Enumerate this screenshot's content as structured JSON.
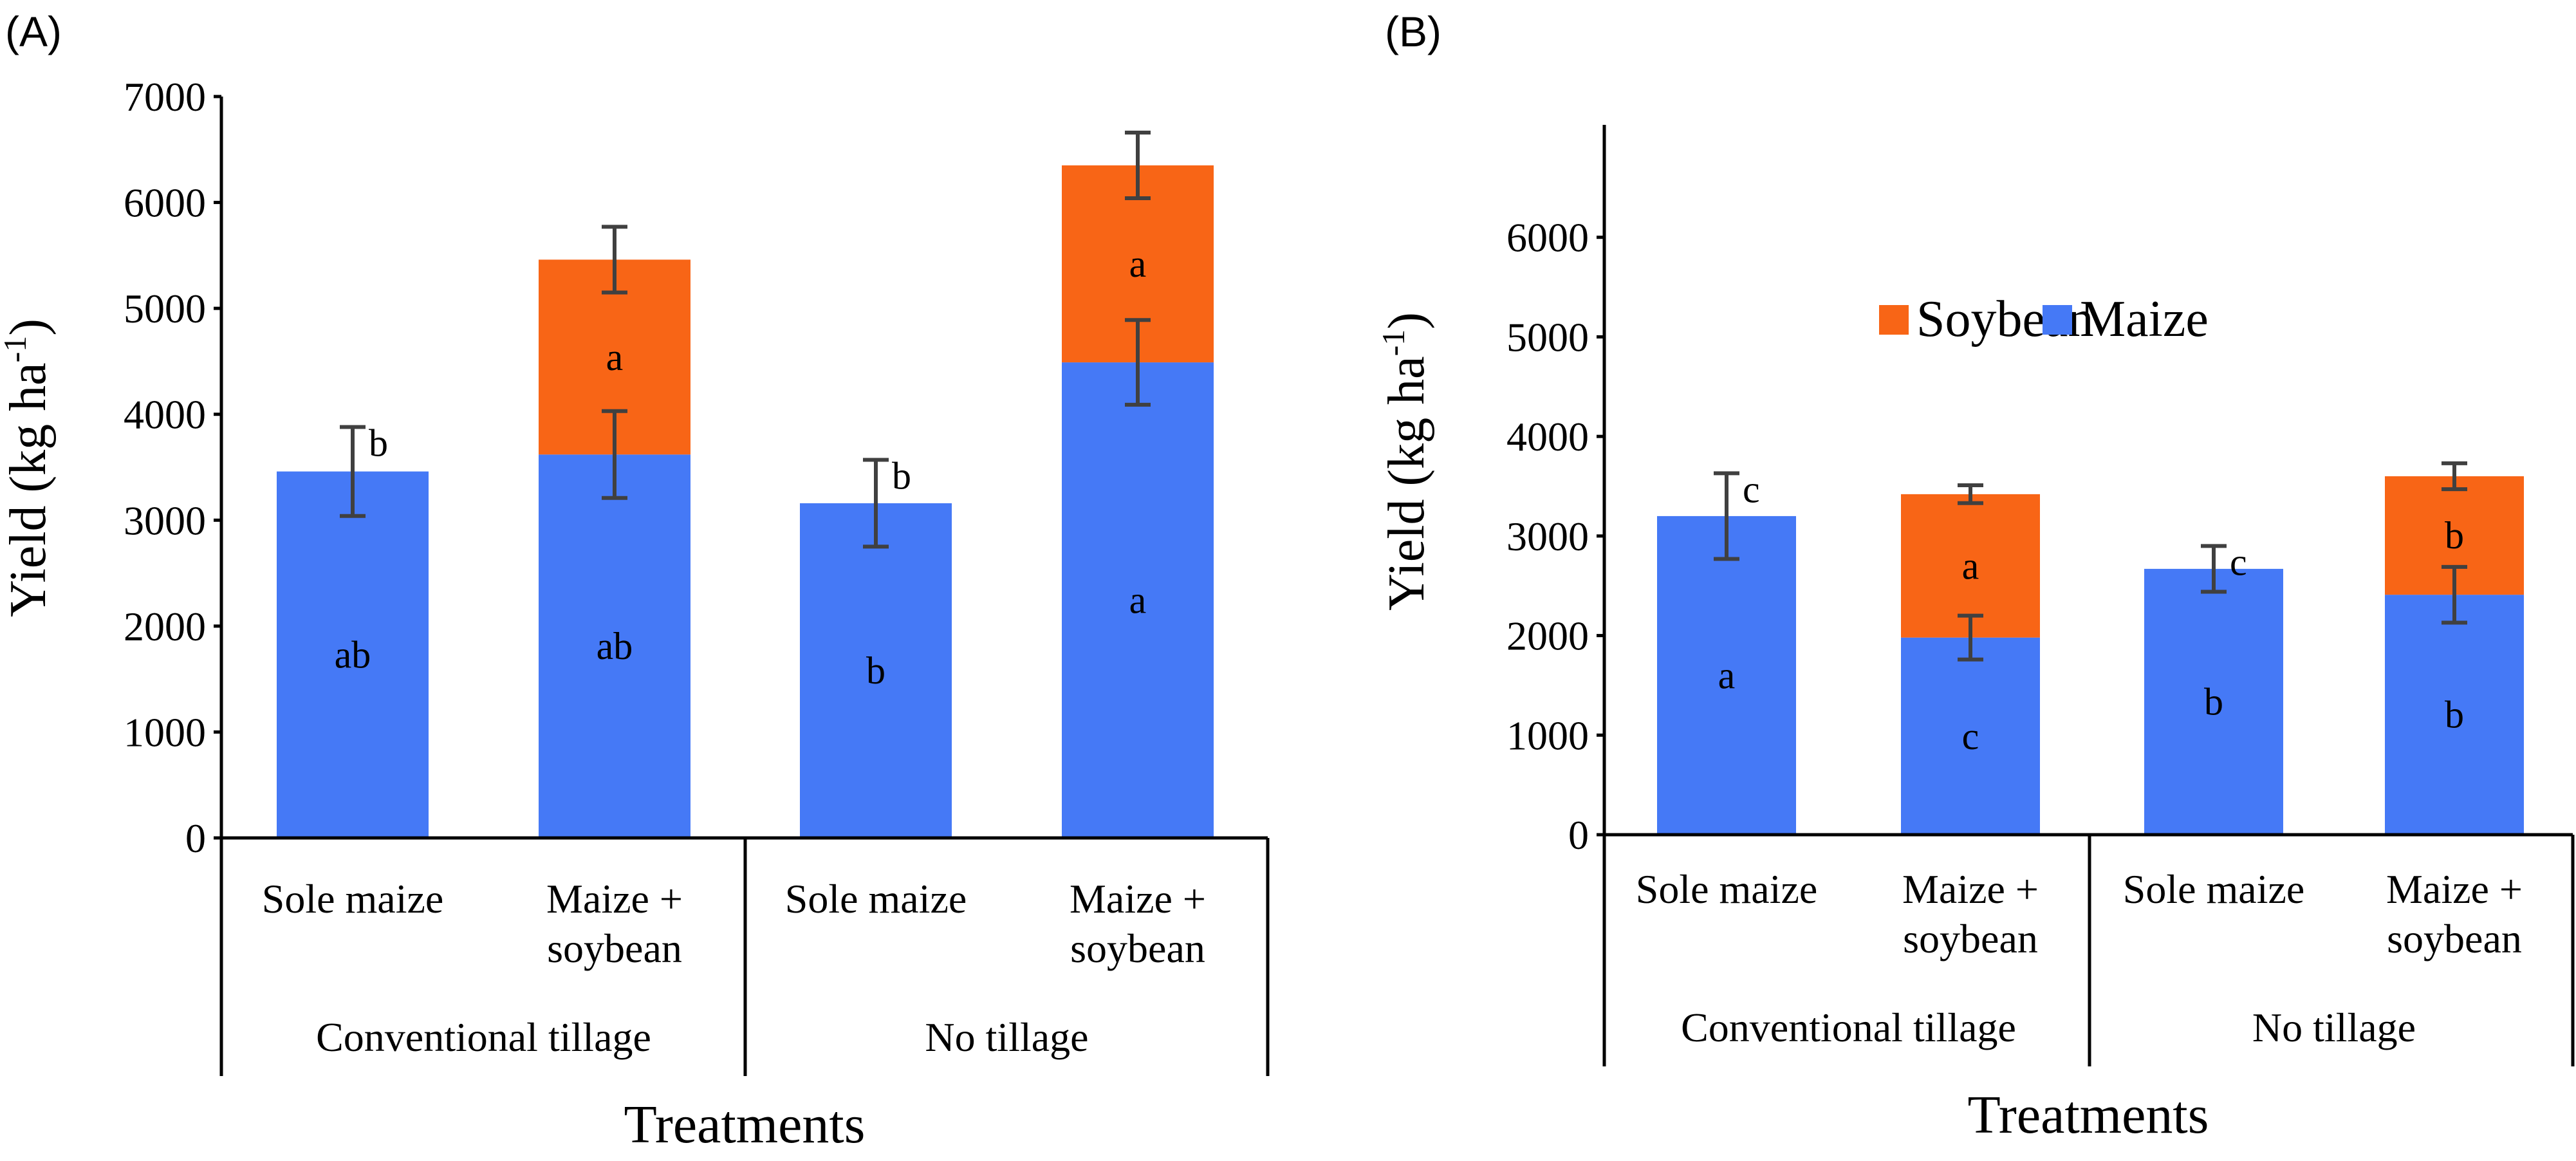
{
  "colors": {
    "maize": "#4579F6",
    "soybean": "#F86516",
    "axis": "#000000",
    "error_bar": "#404040",
    "text": "#000000"
  },
  "chart_data": [
    {
      "type": "bar",
      "stacked": true,
      "panel_label": "(A)",
      "xlabel": "Treatments",
      "ylabel_main": "Yield (kg ha",
      "ylabel_sup": "-1",
      "ylabel_end": ")",
      "ylim": [
        0,
        7000
      ],
      "yticks": [
        0,
        1000,
        2000,
        3000,
        4000,
        5000,
        6000,
        7000
      ],
      "legend": null,
      "categories": [
        "Sole maize",
        "Maize + soybean",
        "Sole maize",
        "Maize + soybean"
      ],
      "category_lines": [
        [
          "Sole maize"
        ],
        [
          "Maize +",
          "soybean"
        ],
        [
          "Sole maize"
        ],
        [
          "Maize +",
          "soybean"
        ]
      ],
      "groups": [
        {
          "label": "Conventional tillage",
          "span": [
            0,
            1
          ]
        },
        {
          "label": "No tillage",
          "span": [
            2,
            3
          ]
        }
      ],
      "series": [
        {
          "name": "Maize",
          "values": [
            3460,
            3620,
            3160,
            4490
          ],
          "errors": [
            420,
            410,
            410,
            400
          ],
          "letters": [
            "ab",
            "ab",
            "b",
            "a"
          ],
          "top_letters": [
            "b",
            null,
            "b",
            null
          ]
        },
        {
          "name": "Soybean",
          "values": [
            null,
            1840,
            null,
            1860
          ],
          "errors": [
            null,
            310,
            null,
            310
          ],
          "letters": [
            null,
            "a",
            null,
            "a"
          ],
          "top_letters": [
            null,
            null,
            null,
            null
          ]
        }
      ]
    },
    {
      "type": "bar",
      "stacked": true,
      "panel_label": "(B)",
      "xlabel": "Treatments",
      "ylabel_main": "Yield (kg ha",
      "ylabel_sup": "-1",
      "ylabel_end": ")",
      "ylim": [
        0,
        7000
      ],
      "yticks": [
        0,
        1000,
        2000,
        3000,
        4000,
        5000,
        6000
      ],
      "legend": {
        "position": "top-center",
        "order": [
          "Soybean",
          "Maize"
        ]
      },
      "categories": [
        "Sole maize",
        "Maize + soybean",
        "Sole maize",
        "Maize + soybean"
      ],
      "category_lines": [
        [
          "Sole maize"
        ],
        [
          "Maize +",
          "soybean"
        ],
        [
          "Sole maize"
        ],
        [
          "Maize +",
          "soybean"
        ]
      ],
      "groups": [
        {
          "label": "Conventional tillage",
          "span": [
            0,
            1
          ]
        },
        {
          "label": "No tillage",
          "span": [
            2,
            3
          ]
        }
      ],
      "series": [
        {
          "name": "Maize",
          "values": [
            3200,
            1980,
            2670,
            2410
          ],
          "errors": [
            430,
            220,
            230,
            280
          ],
          "letters": [
            "a",
            "c",
            "b",
            "b"
          ],
          "top_letters": [
            "c",
            null,
            "c",
            null
          ]
        },
        {
          "name": "Soybean",
          "values": [
            null,
            1440,
            null,
            1190
          ],
          "errors": [
            null,
            90,
            null,
            130
          ],
          "letters": [
            null,
            "a",
            null,
            "b"
          ],
          "top_letters": [
            null,
            null,
            null,
            null
          ]
        }
      ]
    }
  ]
}
